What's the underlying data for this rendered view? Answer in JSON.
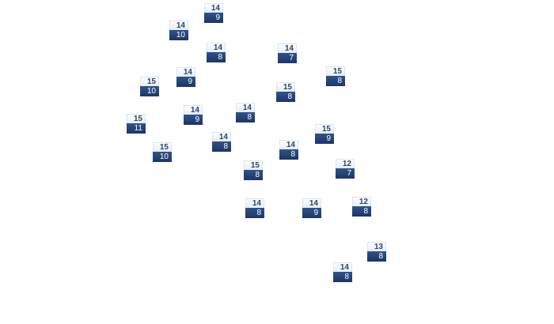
{
  "map": {
    "colors": {
      "label_top_bg": "#eef3fb",
      "label_top_text": "#2a4373",
      "label_bottom_bg": "#24416f",
      "label_bottom_text": "#ffffff"
    },
    "markers": [
      {
        "top": "14",
        "bottom": "9"
      },
      {
        "top": "14",
        "bottom": "10"
      },
      {
        "top": "14",
        "bottom": "8"
      },
      {
        "top": "14",
        "bottom": "7"
      },
      {
        "top": "15",
        "bottom": "8"
      },
      {
        "top": "14",
        "bottom": "9"
      },
      {
        "top": "15",
        "bottom": "10"
      },
      {
        "top": "15",
        "bottom": "8"
      },
      {
        "top": "14",
        "bottom": "8"
      },
      {
        "top": "14",
        "bottom": "9"
      },
      {
        "top": "15",
        "bottom": "11"
      },
      {
        "top": "15",
        "bottom": "9"
      },
      {
        "top": "14",
        "bottom": "8"
      },
      {
        "top": "14",
        "bottom": "8"
      },
      {
        "top": "15",
        "bottom": "10"
      },
      {
        "top": "15",
        "bottom": "8"
      },
      {
        "top": "12",
        "bottom": "7"
      },
      {
        "top": "14",
        "bottom": "8"
      },
      {
        "top": "14",
        "bottom": "9"
      },
      {
        "top": "12",
        "bottom": "8"
      },
      {
        "top": "13",
        "bottom": "8"
      },
      {
        "top": "14",
        "bottom": "8"
      }
    ]
  }
}
